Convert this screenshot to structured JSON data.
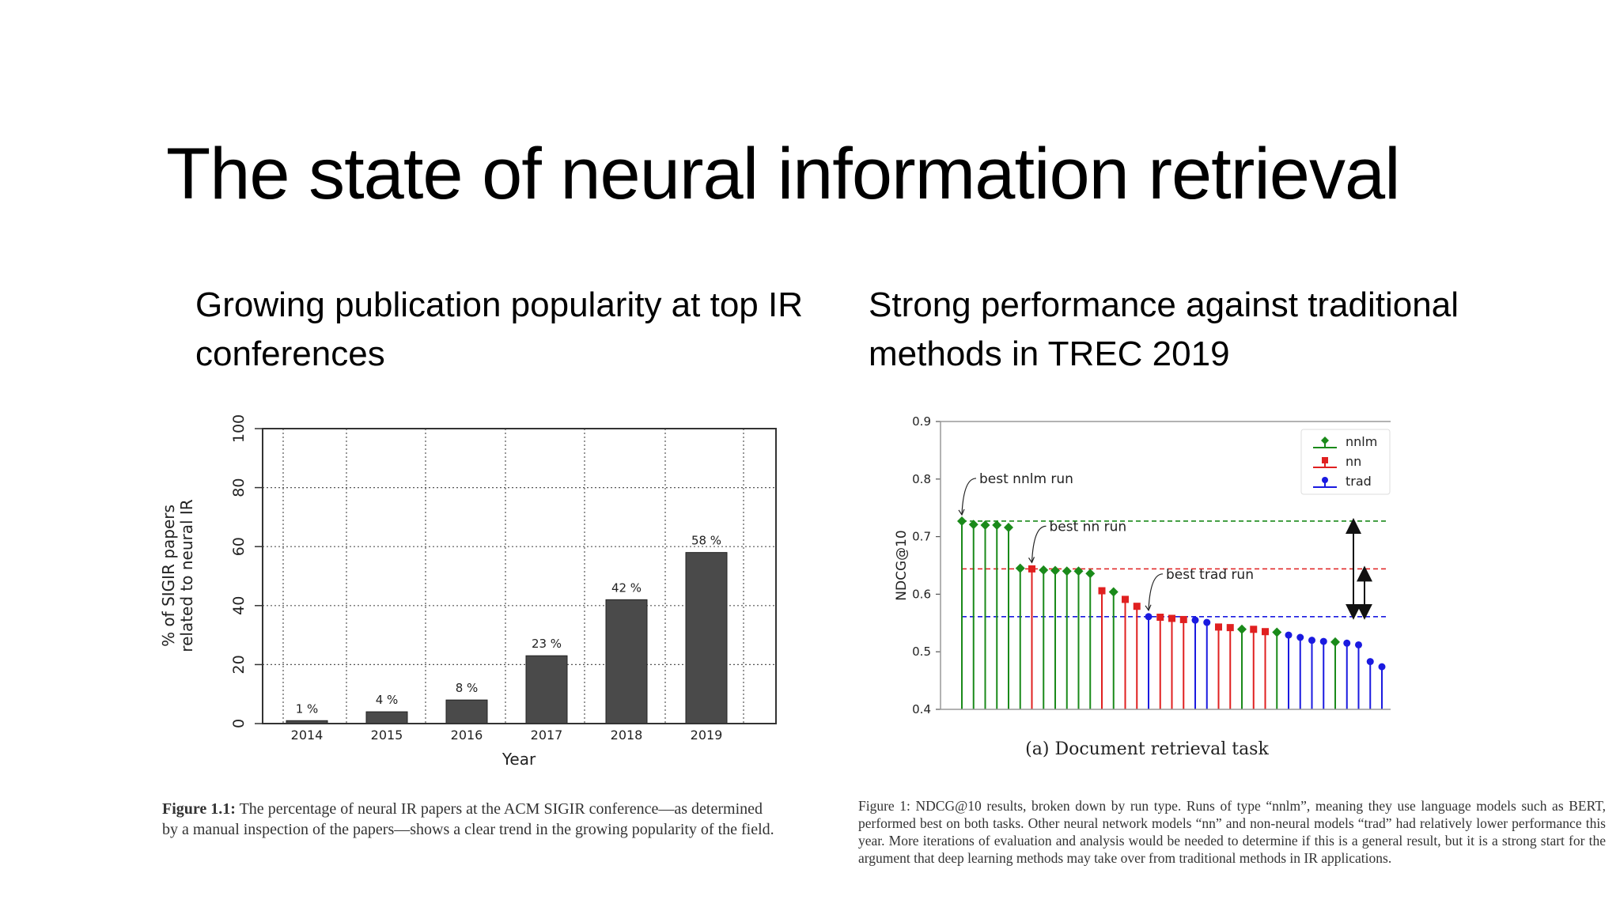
{
  "slide": {
    "title": "The state of neural information retrieval",
    "left_heading": "Growing publication popularity at top IR conferences",
    "right_heading": "Strong performance against traditional methods in TREC 2019"
  },
  "captions": {
    "left_label": "Figure 1.1:",
    "left_text": "The percentage of neural IR papers at the ACM SIGIR conference—as determined by a manual inspection of the papers—shows a clear trend in the growing popularity of the field.",
    "right_text": "Figure 1: NDCG@10 results, broken down by run type. Runs of type “nnlm”, meaning they use language models such as BERT, performed best on both tasks. Other neural network models “nn” and non-neural models “trad” had relatively lower performance this year. More iterations of evaluation and analysis would be needed to determine if this is a general result, but it is a strong start for the argument that deep learning methods may take over from traditional methods in IR applications."
  },
  "chart_data": [
    {
      "type": "bar",
      "categories": [
        "2014",
        "2015",
        "2016",
        "2017",
        "2018",
        "2019"
      ],
      "values": [
        1,
        4,
        8,
        23,
        42,
        58
      ],
      "data_labels": [
        "1 %",
        "4 %",
        "8 %",
        "23 %",
        "42 %",
        "58 %"
      ],
      "xlabel": "Year",
      "ylabel": "% of SIGIR papers related to neural IR",
      "ylim": [
        0,
        100
      ],
      "yticks": [
        "0",
        "20",
        "40",
        "60",
        "80",
        "100"
      ],
      "grid": true,
      "colors": {
        "bar": "#4a4a4a"
      }
    },
    {
      "type": "scatter",
      "subtitle": "(a) Document retrieval task",
      "ylabel": "NDCG@10",
      "ylim": [
        0.4,
        0.9
      ],
      "yticks": [
        "0.4",
        "0.5",
        "0.6",
        "0.7",
        "0.8",
        "0.9"
      ],
      "legend": {
        "position": "top-right",
        "entries": [
          "nnlm",
          "nn",
          "trad"
        ]
      },
      "series": [
        {
          "name": "nnlm",
          "color": "#1a8a1a"
        },
        {
          "name": "nn",
          "color": "#e02020"
        },
        {
          "name": "trad",
          "color": "#1a1ae0"
        }
      ],
      "points": [
        {
          "v": 0.727,
          "s": "nnlm"
        },
        {
          "v": 0.721,
          "s": "nnlm"
        },
        {
          "v": 0.72,
          "s": "nnlm"
        },
        {
          "v": 0.72,
          "s": "nnlm"
        },
        {
          "v": 0.716,
          "s": "nnlm"
        },
        {
          "v": 0.645,
          "s": "nnlm"
        },
        {
          "v": 0.644,
          "s": "nn"
        },
        {
          "v": 0.642,
          "s": "nnlm"
        },
        {
          "v": 0.641,
          "s": "nnlm"
        },
        {
          "v": 0.64,
          "s": "nnlm"
        },
        {
          "v": 0.64,
          "s": "nnlm"
        },
        {
          "v": 0.636,
          "s": "nnlm"
        },
        {
          "v": 0.606,
          "s": "nn"
        },
        {
          "v": 0.604,
          "s": "nnlm"
        },
        {
          "v": 0.591,
          "s": "nn"
        },
        {
          "v": 0.579,
          "s": "nn"
        },
        {
          "v": 0.561,
          "s": "trad"
        },
        {
          "v": 0.56,
          "s": "nn"
        },
        {
          "v": 0.558,
          "s": "nn"
        },
        {
          "v": 0.556,
          "s": "nn"
        },
        {
          "v": 0.555,
          "s": "trad"
        },
        {
          "v": 0.551,
          "s": "trad"
        },
        {
          "v": 0.543,
          "s": "nn"
        },
        {
          "v": 0.542,
          "s": "nn"
        },
        {
          "v": 0.539,
          "s": "nnlm"
        },
        {
          "v": 0.539,
          "s": "nn"
        },
        {
          "v": 0.535,
          "s": "nn"
        },
        {
          "v": 0.534,
          "s": "nnlm"
        },
        {
          "v": 0.529,
          "s": "trad"
        },
        {
          "v": 0.525,
          "s": "trad"
        },
        {
          "v": 0.52,
          "s": "trad"
        },
        {
          "v": 0.518,
          "s": "trad"
        },
        {
          "v": 0.517,
          "s": "nnlm"
        },
        {
          "v": 0.515,
          "s": "trad"
        },
        {
          "v": 0.512,
          "s": "trad"
        },
        {
          "v": 0.483,
          "s": "trad"
        },
        {
          "v": 0.474,
          "s": "trad"
        }
      ],
      "reference_lines": [
        {
          "v": 0.727,
          "s": "nnlm"
        },
        {
          "v": 0.644,
          "s": "nn"
        },
        {
          "v": 0.561,
          "s": "trad"
        }
      ],
      "annotations": [
        {
          "text": "best nnlm run",
          "index": 0
        },
        {
          "text": "best nn run",
          "index": 6
        },
        {
          "text": "best trad run",
          "index": 16
        }
      ]
    }
  ]
}
